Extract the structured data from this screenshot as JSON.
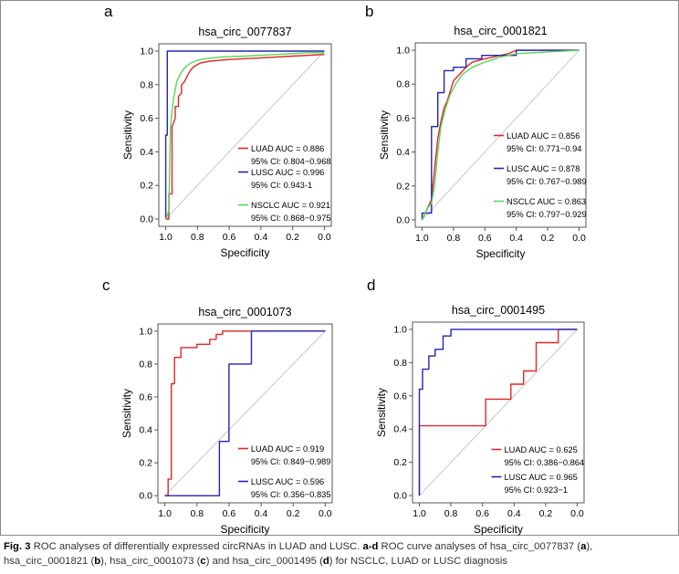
{
  "figure": {
    "caption": {
      "label": "Fig. 3",
      "part1": " ROC analyses of differentially expressed circRNAs in LUAD and LUSC. ",
      "bold_range": "a-d",
      "part2": " ROC curve analyses of hsa_circ_0077837 (",
      "a": "a",
      "part3": "), hsa_circ_0001821 (",
      "b": "b",
      "part4": "), hsa_circ_0001073 (",
      "c": "c",
      "part5": ") and hsa_circ_0001495 (",
      "d": "d",
      "part6": ") for NSCLC, LUAD or LUSC diagnosis"
    }
  },
  "chart_data": [
    {
      "panel": "a",
      "type": "line",
      "title": "hsa_circ_0077837",
      "xlabel": "Specificity",
      "ylabel": "Sensitivity",
      "xlim": [
        1.0,
        0.0
      ],
      "ylim": [
        0.0,
        1.0
      ],
      "x_ticks": [
        "1.0",
        "0.8",
        "0.6",
        "0.4",
        "0.2",
        "0.0"
      ],
      "y_ticks": [
        "0.0",
        "0.2",
        "0.4",
        "0.6",
        "0.8",
        "1.0"
      ],
      "legend_position": "bottom-right",
      "colors": {
        "diagonal": "#c8c8c8",
        "frame": "#555555"
      },
      "series": [
        {
          "name": "LUAD",
          "auc_label": "LUAD AUC = 0.886",
          "ci_label": "95% CI: 0.804−0.968",
          "color": "#e32626",
          "specificity": [
            1.0,
            0.98,
            0.98,
            0.96,
            0.96,
            0.94,
            0.94,
            0.92,
            0.92,
            0.9,
            0.9,
            0.88,
            0.86,
            0.84,
            0.82,
            0.78,
            0.72,
            0.6,
            0.4,
            0.2,
            0.0
          ],
          "sensitivity": [
            0.0,
            0.0,
            0.15,
            0.15,
            0.55,
            0.6,
            0.67,
            0.67,
            0.73,
            0.75,
            0.8,
            0.82,
            0.86,
            0.89,
            0.91,
            0.93,
            0.94,
            0.95,
            0.96,
            0.97,
            0.98
          ]
        },
        {
          "name": "LUSC",
          "auc_label": "LUSC AUC = 0.996",
          "ci_label": "95% CI: 0.943-1",
          "color": "#2323b8",
          "specificity": [
            1.0,
            1.0,
            0.99,
            0.99,
            0.0
          ],
          "sensitivity": [
            0.0,
            0.5,
            0.5,
            1.0,
            1.0
          ]
        },
        {
          "name": "NSCLC",
          "auc_label": "NSCLC AUC = 0.921",
          "ci_label": "95% CI: 0.868−0.975",
          "color": "#55d855",
          "specificity": [
            1.0,
            0.98,
            0.97,
            0.96,
            0.95,
            0.94,
            0.93,
            0.91,
            0.89,
            0.87,
            0.84,
            0.8,
            0.75,
            0.65,
            0.5,
            0.3,
            0.1,
            0.0
          ],
          "sensitivity": [
            0.0,
            0.05,
            0.55,
            0.64,
            0.72,
            0.77,
            0.82,
            0.86,
            0.89,
            0.91,
            0.93,
            0.945,
            0.955,
            0.965,
            0.97,
            0.98,
            0.99,
            0.99
          ]
        }
      ]
    },
    {
      "panel": "b",
      "type": "line",
      "title": "hsa_circ_0001821",
      "xlabel": "Specificity",
      "ylabel": "Sensitivity",
      "xlim": [
        1.0,
        0.0
      ],
      "ylim": [
        0.0,
        1.0
      ],
      "x_ticks": [
        "1.0",
        "0.8",
        "0.6",
        "0.4",
        "0.2",
        "0.0"
      ],
      "y_ticks": [
        "0.0",
        "0.2",
        "0.4",
        "0.6",
        "0.8",
        "1.0"
      ],
      "legend_position": "bottom-right",
      "series": [
        {
          "name": "LUAD",
          "auc_label": "LUAD AUC = 0.856",
          "ci_label": "95% CI: 0.771−0.94",
          "color": "#e32626",
          "specificity": [
            1.0,
            0.98,
            0.96,
            0.94,
            0.92,
            0.9,
            0.88,
            0.86,
            0.84,
            0.82,
            0.8,
            0.76,
            0.72,
            0.68,
            0.6,
            0.5,
            0.45,
            0.4,
            0.0
          ],
          "sensitivity": [
            0.0,
            0.04,
            0.08,
            0.12,
            0.3,
            0.48,
            0.58,
            0.66,
            0.7,
            0.76,
            0.82,
            0.86,
            0.9,
            0.93,
            0.95,
            0.97,
            0.98,
            1.0,
            1.0
          ]
        },
        {
          "name": "LUSC",
          "auc_label": "LUSC AUC = 0.878",
          "ci_label": "95% CI: 0.767−0.989",
          "color": "#2323b8",
          "specificity": [
            1.0,
            1.0,
            0.94,
            0.94,
            0.9,
            0.9,
            0.86,
            0.86,
            0.8,
            0.8,
            0.72,
            0.72,
            0.62,
            0.62,
            0.4,
            0.4,
            0.0
          ],
          "sensitivity": [
            0.0,
            0.04,
            0.04,
            0.55,
            0.55,
            0.75,
            0.75,
            0.88,
            0.88,
            0.9,
            0.9,
            0.95,
            0.95,
            0.97,
            0.97,
            1.0,
            1.0
          ]
        },
        {
          "name": "NSCLC",
          "auc_label": "NSCLC AUC = 0.863",
          "ci_label": "95% CI: 0.797−0.929",
          "color": "#55d855",
          "specificity": [
            1.0,
            0.97,
            0.94,
            0.92,
            0.9,
            0.88,
            0.85,
            0.82,
            0.78,
            0.74,
            0.68,
            0.6,
            0.5,
            0.4,
            0.0
          ],
          "sensitivity": [
            0.0,
            0.06,
            0.1,
            0.2,
            0.4,
            0.55,
            0.66,
            0.74,
            0.81,
            0.86,
            0.9,
            0.93,
            0.96,
            0.98,
            1.0
          ]
        }
      ]
    },
    {
      "panel": "c",
      "type": "line",
      "title": "hsa_circ_0001073",
      "xlabel": "Specificity",
      "ylabel": "Sensitivity",
      "xlim": [
        1.0,
        0.0
      ],
      "ylim": [
        0.0,
        1.0
      ],
      "x_ticks": [
        "1.0",
        "0.8",
        "0.6",
        "0.4",
        "0.2",
        "0.0"
      ],
      "y_ticks": [
        "0.0",
        "0.2",
        "0.4",
        "0.6",
        "0.8",
        "1.0"
      ],
      "legend_position": "bottom-right",
      "series": [
        {
          "name": "LUAD",
          "auc_label": "LUAD AUC = 0.919",
          "ci_label": "95% CI: 0.849−0.989",
          "color": "#e32626",
          "specificity": [
            1.0,
            0.98,
            0.98,
            0.96,
            0.96,
            0.94,
            0.94,
            0.9,
            0.9,
            0.8,
            0.8,
            0.72,
            0.72,
            0.68,
            0.68,
            0.64,
            0.64,
            0.0
          ],
          "sensitivity": [
            0.0,
            0.0,
            0.1,
            0.1,
            0.68,
            0.68,
            0.84,
            0.84,
            0.9,
            0.9,
            0.92,
            0.92,
            0.95,
            0.95,
            0.98,
            0.98,
            1.0,
            1.0
          ]
        },
        {
          "name": "LUSC",
          "auc_label": "LUSC AUC = 0.596",
          "ci_label": "95% CI: 0.356−0.835",
          "color": "#2323b8",
          "specificity": [
            1.0,
            0.66,
            0.66,
            0.6,
            0.6,
            0.46,
            0.46,
            0.0
          ],
          "sensitivity": [
            0.0,
            0.0,
            0.33,
            0.33,
            0.8,
            0.8,
            1.0,
            1.0
          ]
        }
      ]
    },
    {
      "panel": "d",
      "type": "line",
      "title": "hsa_circ_0001495",
      "xlabel": "Specificity",
      "ylabel": "Sensitivity",
      "xlim": [
        1.0,
        0.0
      ],
      "ylim": [
        0.0,
        1.0
      ],
      "x_ticks": [
        "1.0",
        "0.8",
        "0.6",
        "0.4",
        "0.2",
        "0.0"
      ],
      "y_ticks": [
        "0.0",
        "0.2",
        "0.4",
        "0.6",
        "0.8",
        "1.0"
      ],
      "legend_position": "bottom-right",
      "series": [
        {
          "name": "LUAD",
          "auc_label": "LUAD AUC = 0.625",
          "ci_label": "95% CI: 0.386−0.864",
          "color": "#e32626",
          "specificity": [
            1.0,
            1.0,
            0.58,
            0.58,
            0.42,
            0.42,
            0.34,
            0.34,
            0.26,
            0.26,
            0.12,
            0.12,
            0.0
          ],
          "sensitivity": [
            0.0,
            0.42,
            0.42,
            0.58,
            0.58,
            0.67,
            0.67,
            0.75,
            0.75,
            0.92,
            0.92,
            1.0,
            1.0
          ]
        },
        {
          "name": "LUSC",
          "auc_label": "LUSC AUC = 0.965",
          "ci_label": "95% CI: 0.923−1",
          "color": "#2323b8",
          "specificity": [
            1.0,
            1.0,
            0.98,
            0.98,
            0.94,
            0.94,
            0.9,
            0.9,
            0.85,
            0.85,
            0.8,
            0.8,
            0.0
          ],
          "sensitivity": [
            0.0,
            0.64,
            0.64,
            0.76,
            0.76,
            0.84,
            0.84,
            0.88,
            0.88,
            0.96,
            0.96,
            1.0,
            1.0
          ]
        }
      ]
    }
  ]
}
